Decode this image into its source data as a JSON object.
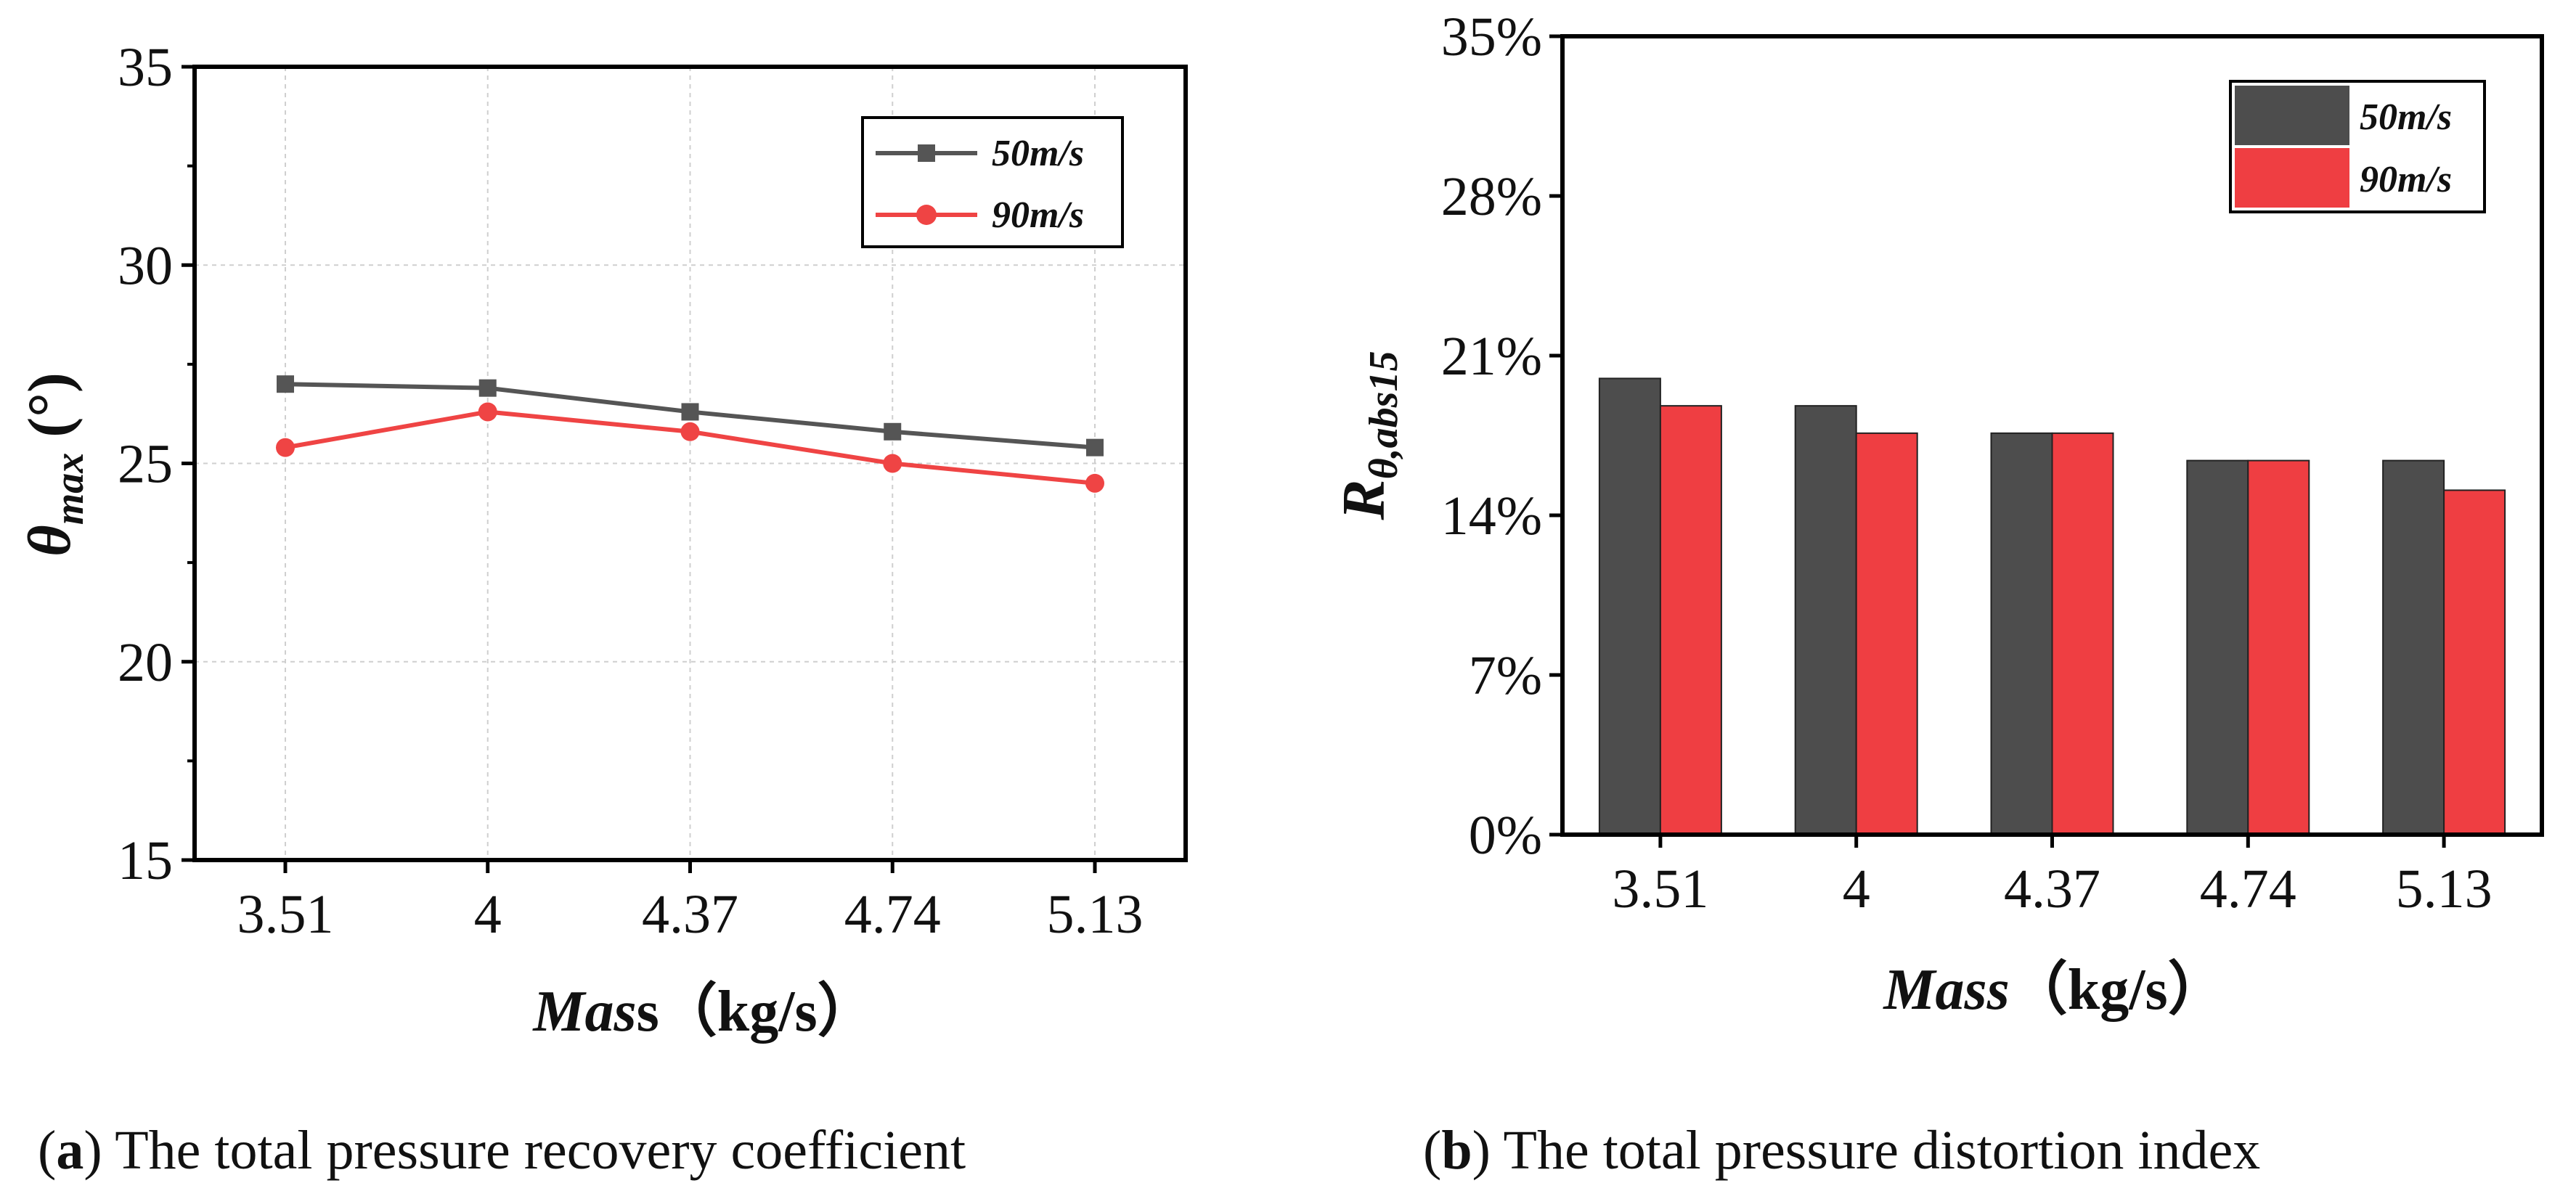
{
  "chart_data": [
    {
      "panel": "a",
      "type": "line",
      "categories": [
        "3.51",
        "4",
        "4.37",
        "4.74",
        "5.13"
      ],
      "series": [
        {
          "name": "50m/s",
          "values": [
            27.0,
            26.9,
            26.3,
            25.8,
            25.4
          ],
          "color": "#555555",
          "marker": "square"
        },
        {
          "name": "90m/s",
          "values": [
            25.4,
            26.3,
            25.8,
            25.0,
            24.5
          ],
          "color": "#ef4444",
          "marker": "circle"
        }
      ],
      "ylim": [
        15,
        35
      ],
      "yticks": [
        "15",
        "20",
        "25",
        "30",
        "35"
      ],
      "ytick_values": [
        15,
        20,
        25,
        30,
        35
      ],
      "ylabel": {
        "symbol": "θ",
        "subscript": "max",
        "unit": " (°)"
      },
      "xlabel": {
        "italic": "Mas",
        "bold": "s（kg/s）"
      },
      "grid": true,
      "legend_position": "top-right",
      "caption": {
        "letter": "a",
        "text": " The total pressure recovery coefficient"
      }
    },
    {
      "panel": "b",
      "type": "bar",
      "categories": [
        "3.51",
        "4",
        "4.37",
        "4.74",
        "5.13"
      ],
      "series": [
        {
          "name": "50m/s",
          "values": [
            20.0,
            18.8,
            17.6,
            16.4,
            16.4
          ],
          "color": "#4d4d4d"
        },
        {
          "name": "90m/s",
          "values": [
            18.8,
            17.6,
            17.6,
            16.4,
            15.1
          ],
          "color": "#ef3e42"
        }
      ],
      "ylim": [
        0,
        35
      ],
      "yticks": [
        "0%",
        "7%",
        "14%",
        "21%",
        "28%",
        "35%"
      ],
      "ytick_values": [
        0,
        7,
        14,
        21,
        28,
        35
      ],
      "ylabel": {
        "symbol": "R",
        "subscript": "θ,abs15"
      },
      "xlabel": {
        "italic": "Mass",
        "bold": "（kg/s）"
      },
      "grid": false,
      "legend_position": "top-right",
      "caption": {
        "letter": "b",
        "text": " The total pressure distortion index"
      }
    }
  ]
}
